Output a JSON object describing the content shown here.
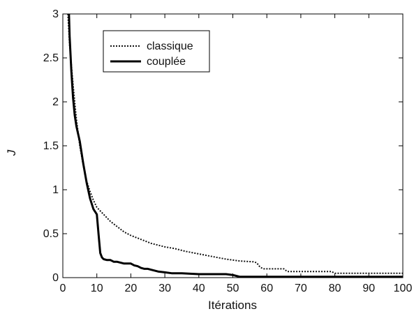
{
  "chart_data": {
    "type": "line",
    "title": "",
    "xlabel": "Itérations",
    "ylabel": "J",
    "xlim": [
      0,
      100
    ],
    "ylim": [
      0,
      3
    ],
    "xticks": [
      0,
      10,
      20,
      30,
      40,
      50,
      60,
      70,
      80,
      90,
      100
    ],
    "yticks": [
      0,
      0.5,
      1,
      1.5,
      2,
      2.5,
      3
    ],
    "ytick_labels": [
      "0",
      "0.5",
      "1",
      "1.5",
      "2",
      "2.5",
      "3"
    ],
    "grid": false,
    "legend_position": "top-left",
    "series": [
      {
        "name": "classique",
        "style": "dotted",
        "color": "#111111",
        "x": [
          1.5,
          2,
          3,
          4,
          5,
          6,
          7,
          8,
          9,
          10,
          12,
          14,
          16,
          18,
          20,
          22,
          24,
          26,
          28,
          30,
          33,
          36,
          40,
          44,
          48,
          52,
          56,
          57,
          58,
          59,
          62,
          65,
          66,
          70,
          75,
          79,
          80,
          85,
          90,
          95,
          100
        ],
        "y": [
          3.0,
          2.65,
          2.2,
          1.8,
          1.5,
          1.28,
          1.1,
          0.98,
          0.88,
          0.8,
          0.72,
          0.64,
          0.58,
          0.52,
          0.48,
          0.45,
          0.42,
          0.39,
          0.37,
          0.35,
          0.33,
          0.3,
          0.27,
          0.24,
          0.21,
          0.19,
          0.18,
          0.17,
          0.12,
          0.1,
          0.1,
          0.1,
          0.07,
          0.07,
          0.07,
          0.07,
          0.05,
          0.05,
          0.05,
          0.05,
          0.05
        ]
      },
      {
        "name": "couplée",
        "style": "solid",
        "color": "#000000",
        "x": [
          1.8,
          2,
          2.5,
          3,
          3.5,
          4,
          5,
          6,
          7,
          8,
          9,
          10,
          10.5,
          11,
          11.5,
          12,
          13,
          14,
          15,
          16,
          17,
          18,
          19,
          20,
          21,
          22,
          23,
          24,
          25,
          26,
          27,
          28,
          30,
          32,
          35,
          40,
          45,
          48,
          50,
          51,
          52,
          53,
          55,
          60,
          70,
          80,
          90,
          100
        ],
        "y": [
          3.0,
          2.75,
          2.35,
          2.05,
          1.85,
          1.72,
          1.55,
          1.3,
          1.08,
          0.9,
          0.78,
          0.72,
          0.5,
          0.28,
          0.23,
          0.21,
          0.2,
          0.2,
          0.18,
          0.18,
          0.17,
          0.16,
          0.16,
          0.16,
          0.14,
          0.13,
          0.11,
          0.1,
          0.1,
          0.09,
          0.08,
          0.07,
          0.06,
          0.05,
          0.05,
          0.04,
          0.04,
          0.04,
          0.03,
          0.02,
          0.01,
          0.01,
          0.01,
          0.01,
          0.01,
          0.01,
          0.01,
          0.01
        ]
      }
    ]
  }
}
